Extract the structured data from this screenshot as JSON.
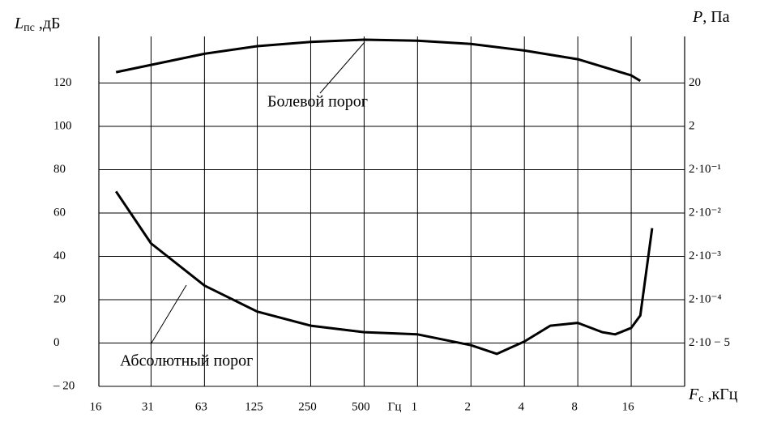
{
  "chart_data": {
    "type": "line",
    "y_label": {
      "main": "L",
      "sub": "пс",
      "unit": " ,дБ"
    },
    "y2_label": {
      "main": "P",
      "unit": ", Па"
    },
    "x_label": {
      "main": "F",
      "sub": "c",
      "unit": " ,кГц"
    },
    "x_unit": "Гц",
    "log_x": true,
    "log_y2": true,
    "grid": true,
    "xlim": [
      16,
      32000
    ],
    "xticks": [
      16,
      {
        "value": 31.5,
        "label": "31"
      },
      63,
      125,
      250,
      500,
      {
        "value": 1000,
        "label": "1"
      },
      {
        "value": 2000,
        "label": "2"
      },
      {
        "value": 4000,
        "label": "4"
      },
      {
        "value": 8000,
        "label": "8"
      },
      {
        "value": 16000,
        "label": "16"
      }
    ],
    "ylim": [
      -20,
      140
    ],
    "yticks": [
      {
        "value": -20,
        "label": "– 20"
      },
      0,
      20,
      40,
      60,
      80,
      100,
      120
    ],
    "y2lim": [
      2e-06,
      200
    ],
    "y2ticks": [
      {
        "value": 2e-05,
        "label": "2·10 − 5"
      },
      {
        "value": 0.0002,
        "label": "2·10⁻⁴"
      },
      {
        "value": 0.002,
        "label": "2·10⁻³"
      },
      {
        "value": 0.02,
        "label": "2·10⁻²"
      },
      {
        "value": 0.2,
        "label": "2·10⁻¹"
      },
      2,
      20
    ],
    "series": [
      {
        "name": "Болевой порог",
        "color": "#000000",
        "x": [
          20,
          63,
          125,
          250,
          500,
          1000,
          2000,
          4000,
          8000,
          16000,
          18000
        ],
        "values": [
          125,
          133.5,
          137,
          139,
          140,
          139.5,
          138,
          135,
          131,
          123.5,
          121
        ]
      },
      {
        "name": "Абсолютный порог",
        "color": "#000000",
        "x": [
          20,
          31.5,
          63,
          125,
          250,
          500,
          1000,
          2000,
          2800,
          4000,
          5600,
          8000,
          11000,
          13000,
          16000,
          18000,
          21000
        ],
        "values": [
          70,
          46,
          26.5,
          14.5,
          8,
          5,
          4,
          -1,
          -5,
          0.7,
          8,
          9.3,
          5,
          4,
          7,
          12.7,
          53
        ]
      }
    ]
  }
}
